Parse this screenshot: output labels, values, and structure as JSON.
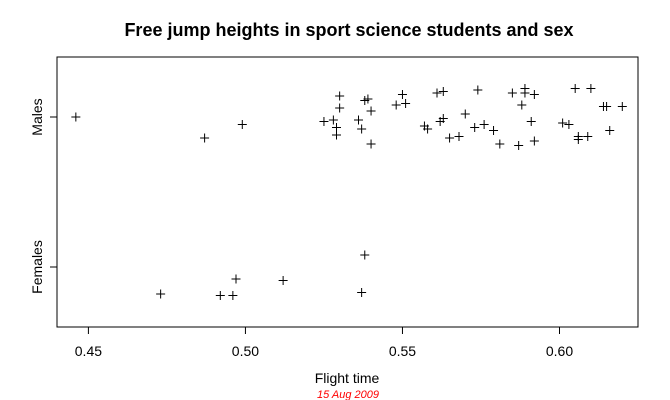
{
  "chart_data": {
    "type": "scatter",
    "title": "Free jump heights in sport science students and sex",
    "xlabel": "Flight time",
    "ylabel": "",
    "date_note": "15 Aug 2009",
    "date_color": "#ff0000",
    "marker": "plus",
    "grid": false,
    "legend": "none",
    "xlim": [
      0.44,
      0.625
    ],
    "ylim": [
      0.6,
      2.4
    ],
    "x_ticks": [
      0.45,
      0.5,
      0.55,
      0.6
    ],
    "x_tick_labels": [
      "0.45",
      "0.50",
      "0.55",
      "0.60"
    ],
    "categories": [
      "Females",
      "Males"
    ],
    "category_positions": [
      1,
      2
    ],
    "series": [
      {
        "category": "Males",
        "points": [
          [
            0.446,
            2.0
          ],
          [
            0.487,
            1.86
          ],
          [
            0.499,
            1.95
          ],
          [
            0.525,
            1.97
          ],
          [
            0.528,
            1.98
          ],
          [
            0.529,
            1.93
          ],
          [
            0.529,
            1.88
          ],
          [
            0.53,
            2.06
          ],
          [
            0.53,
            2.14
          ],
          [
            0.536,
            1.98
          ],
          [
            0.537,
            1.92
          ],
          [
            0.538,
            2.11
          ],
          [
            0.539,
            2.12
          ],
          [
            0.54,
            2.04
          ],
          [
            0.54,
            1.82
          ],
          [
            0.548,
            2.08
          ],
          [
            0.55,
            2.15
          ],
          [
            0.551,
            2.09
          ],
          [
            0.557,
            1.94
          ],
          [
            0.558,
            1.92
          ],
          [
            0.561,
            2.16
          ],
          [
            0.562,
            1.97
          ],
          [
            0.563,
            2.17
          ],
          [
            0.563,
            1.99
          ],
          [
            0.565,
            1.86
          ],
          [
            0.568,
            1.87
          ],
          [
            0.57,
            2.02
          ],
          [
            0.573,
            1.93
          ],
          [
            0.574,
            2.18
          ],
          [
            0.576,
            1.95
          ],
          [
            0.579,
            1.91
          ],
          [
            0.581,
            1.82
          ],
          [
            0.585,
            2.16
          ],
          [
            0.587,
            1.81
          ],
          [
            0.588,
            2.08
          ],
          [
            0.589,
            2.19
          ],
          [
            0.589,
            2.16
          ],
          [
            0.591,
            1.97
          ],
          [
            0.592,
            1.84
          ],
          [
            0.592,
            2.15
          ],
          [
            0.601,
            1.96
          ],
          [
            0.603,
            1.95
          ],
          [
            0.605,
            2.19
          ],
          [
            0.606,
            1.87
          ],
          [
            0.606,
            1.85
          ],
          [
            0.609,
            1.87
          ],
          [
            0.61,
            2.19
          ],
          [
            0.614,
            2.07
          ],
          [
            0.615,
            2.07
          ],
          [
            0.616,
            1.91
          ],
          [
            0.62,
            2.07
          ]
        ]
      },
      {
        "category": "Females",
        "points": [
          [
            0.473,
            0.82
          ],
          [
            0.492,
            0.81
          ],
          [
            0.496,
            0.81
          ],
          [
            0.497,
            0.92
          ],
          [
            0.512,
            0.91
          ],
          [
            0.537,
            0.83
          ],
          [
            0.538,
            1.08
          ]
        ]
      }
    ]
  }
}
